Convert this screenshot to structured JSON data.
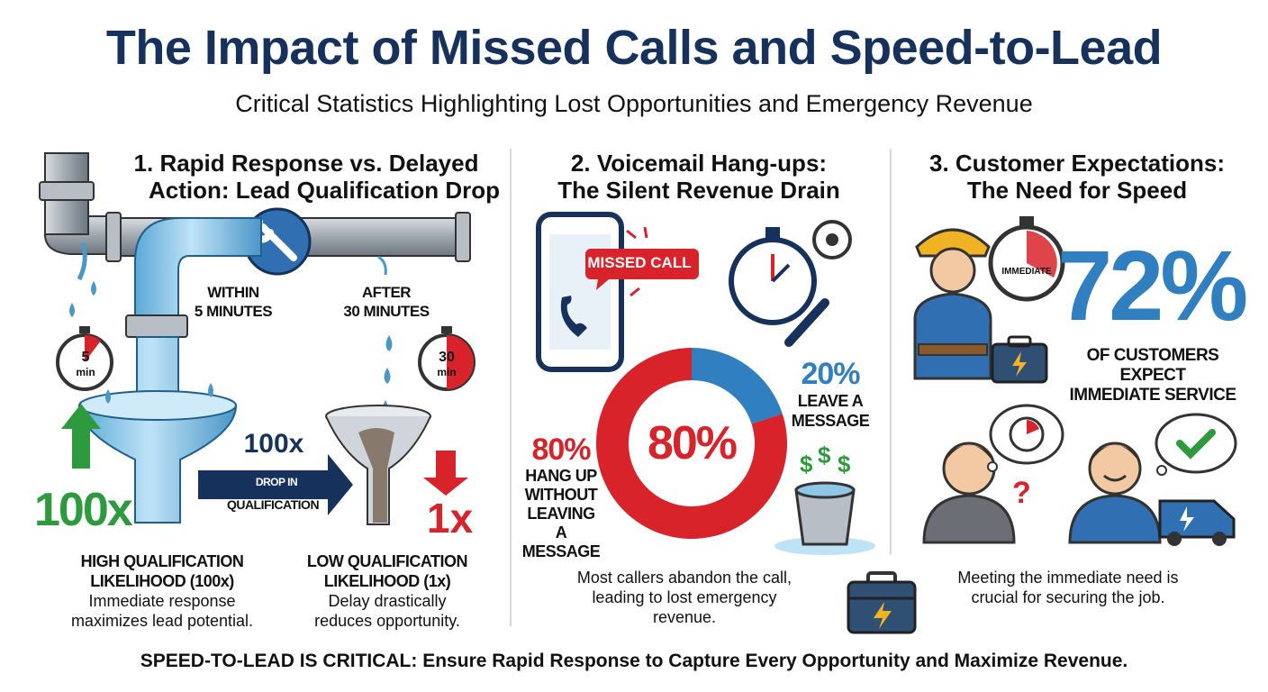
{
  "header": {
    "title": "The Impact of Missed Calls and Speed-to-Lead",
    "subtitle": "Critical Statistics Highlighting Lost Opportunities and Emergency Revenue"
  },
  "section1": {
    "title_line1": "1. Rapid Response vs. Delayed",
    "title_line2": "Action: Lead Qualification Drop",
    "within_label_1": "WITHIN",
    "within_label_2": "5 MINUTES",
    "after_label_1": "AFTER",
    "after_label_2": "30 MINUTES",
    "timer5_value": "5",
    "timer5_unit": "min",
    "timer30_value": "30",
    "timer30_unit": "min",
    "big_left": "100x",
    "big_right": "1x",
    "arrow_value": "100x",
    "arrow_line1": "DROP IN",
    "arrow_line2": "QUALIFICATION",
    "left_caption_1": "HIGH QUALIFICATION",
    "left_caption_2": "LIKELIHOOD (100x)",
    "left_desc_1": "Immediate response",
    "left_desc_2": "maximizes lead potential.",
    "right_caption_1": "LOW QUALIFICATION",
    "right_caption_2": "LIKELIHOOD (1x)",
    "right_desc_1": "Delay drastically",
    "right_desc_2": "reduces opportunity."
  },
  "section2": {
    "title_line1": "2. Voicemail Hang-ups:",
    "title_line2": "The Silent Revenue Drain",
    "missed_call": "MISSED CALL",
    "donut_center": "80%",
    "hangup_pct": "80%",
    "hangup_1": "HANG UP",
    "hangup_2": "WITHOUT",
    "hangup_3": "LEAVING A",
    "hangup_4": "MESSAGE",
    "leave_pct": "20%",
    "leave_1": "LEAVE A",
    "leave_2": "MESSAGE",
    "dollar": "$",
    "desc_1": "Most callers abandon the call,",
    "desc_2": "leading to lost emergency revenue."
  },
  "section3": {
    "title_line1": "3. Customer Expectations:",
    "title_line2": "The Need for Speed",
    "timer_label": "IMMEDIATE",
    "big_pct": "72%",
    "caption_1": "OF CUSTOMERS EXPECT",
    "caption_2": "IMMEDIATE SERVICE",
    "question": "?",
    "desc_1": "Meeting the immediate need is",
    "desc_2": "crucial for securing the job."
  },
  "footer": {
    "bold_part": "SPEED-TO-LEAD IS CRITICAL:",
    "rest": " Ensure Rapid Response to Capture Every Opportunity and Maximize Revenue."
  },
  "chart_data": {
    "type": "pie",
    "categories": [
      "HANG UP WITHOUT LEAVING A MESSAGE",
      "LEAVE A MESSAGE"
    ],
    "values": [
      80,
      20
    ],
    "colors": [
      "#d8232a",
      "#2f7fc1"
    ]
  },
  "colors": {
    "navy": "#16325c",
    "red": "#d8232a",
    "blue": "#2f7fc1",
    "green": "#2e9a3e"
  }
}
